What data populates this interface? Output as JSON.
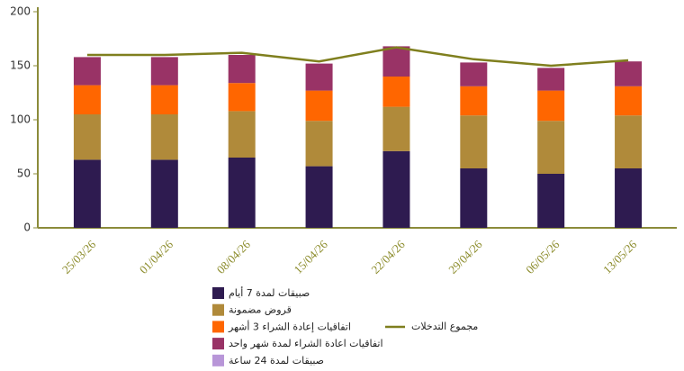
{
  "chart_data": {
    "type": "bar",
    "stacked": true,
    "categories": [
      "25/03/26",
      "01/04/26",
      "08/04/26",
      "15/04/26",
      "22/04/26",
      "29/04/26",
      "06/05/26",
      "13/05/26"
    ],
    "series": [
      {
        "name": "صبيقات لمدة 7 أيام",
        "color": "#2e1b50",
        "values": [
          63,
          63,
          65,
          57,
          71,
          55,
          50,
          55
        ]
      },
      {
        "name": "قروض مضمونة",
        "color": "#b08a3a",
        "values": [
          42,
          42,
          43,
          42,
          41,
          49,
          49,
          49
        ]
      },
      {
        "name": "اتفاقيات إعادة الشراء 3 أشهر",
        "color": "#ff6600",
        "values": [
          27,
          27,
          26,
          28,
          28,
          27,
          28,
          27
        ]
      },
      {
        "name": "اتفاقيات اعادة الشراء لمدة شهر واحد",
        "color": "#993366",
        "values": [
          26,
          26,
          26,
          25,
          28,
          22,
          21,
          23
        ]
      },
      {
        "name": "صبيقات لمدة 24 ساعة",
        "color": "#b896d8",
        "values": [
          0,
          0,
          0,
          0,
          0,
          0,
          0,
          0
        ]
      },
      {
        "name": "مجموع التدخلات",
        "color": "#7f7f1e",
        "type": "line",
        "values": [
          160,
          160,
          162,
          154,
          167,
          156,
          150,
          155
        ]
      }
    ],
    "ylim": [
      0,
      200
    ],
    "yticks": [
      0,
      50,
      100,
      150,
      200
    ]
  }
}
